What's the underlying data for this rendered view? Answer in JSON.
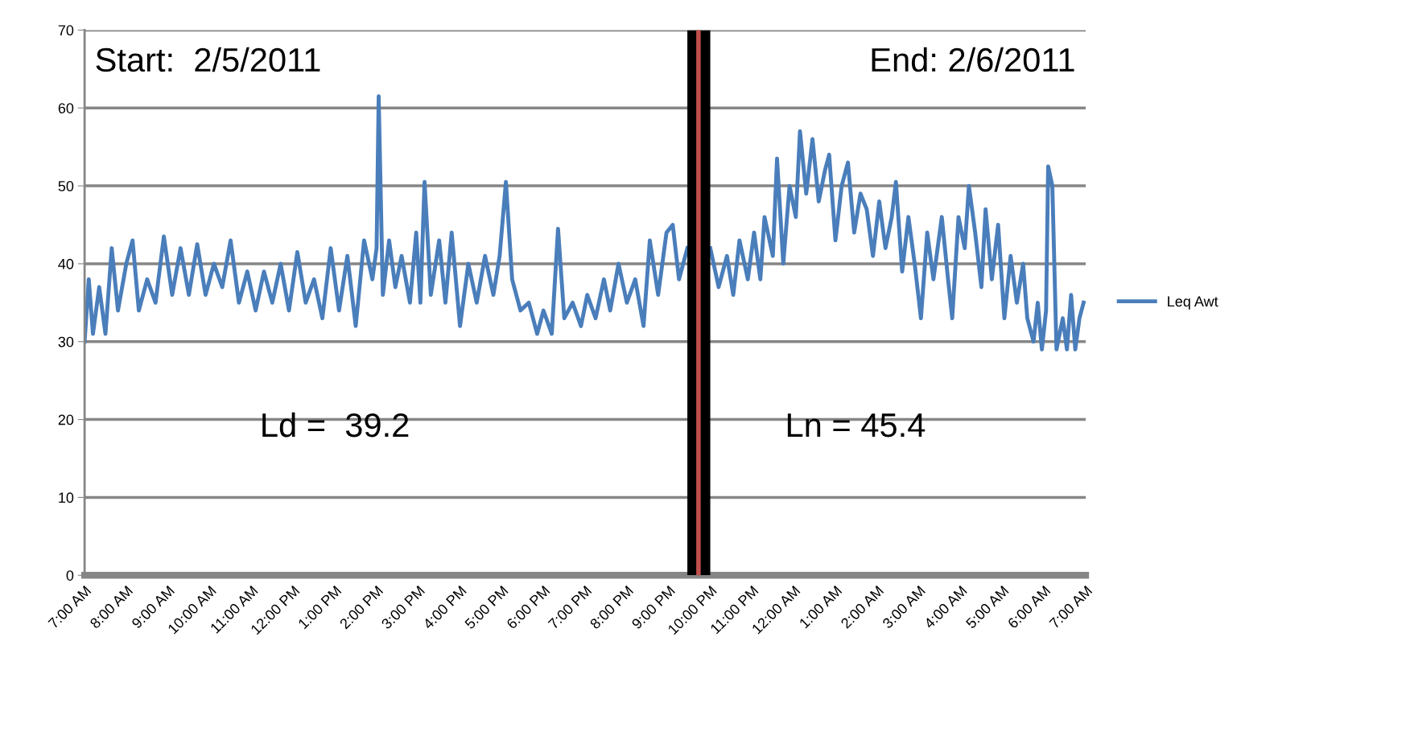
{
  "chart_data": {
    "type": "line",
    "xlim": [
      "2011-02-05T07:00",
      "2011-02-06T07:00"
    ],
    "ylim": [
      0,
      70
    ],
    "yticks": [
      0,
      10,
      20,
      30,
      40,
      50,
      60,
      70
    ],
    "xticks": [
      {
        "value": "2011-02-05T07:00",
        "label": "7:00 AM"
      },
      {
        "value": "2011-02-05T08:00",
        "label": "8:00 AM"
      },
      {
        "value": "2011-02-05T09:00",
        "label": "9:00 AM"
      },
      {
        "value": "2011-02-05T10:00",
        "label": "10:00 AM"
      },
      {
        "value": "2011-02-05T11:00",
        "label": "11:00 AM"
      },
      {
        "value": "2011-02-05T12:00",
        "label": "12:00 PM"
      },
      {
        "value": "2011-02-05T13:00",
        "label": "1:00 PM"
      },
      {
        "value": "2011-02-05T14:00",
        "label": "2:00 PM"
      },
      {
        "value": "2011-02-05T15:00",
        "label": "3:00 PM"
      },
      {
        "value": "2011-02-05T16:00",
        "label": "4:00 PM"
      },
      {
        "value": "2011-02-05T17:00",
        "label": "5:00 PM"
      },
      {
        "value": "2011-02-05T18:00",
        "label": "6:00 PM"
      },
      {
        "value": "2011-02-05T19:00",
        "label": "7:00 PM"
      },
      {
        "value": "2011-02-05T20:00",
        "label": "8:00 PM"
      },
      {
        "value": "2011-02-05T21:00",
        "label": "9:00 PM"
      },
      {
        "value": "2011-02-05T22:00",
        "label": "10:00 PM"
      },
      {
        "value": "2011-02-05T23:00",
        "label": "11:00 PM"
      },
      {
        "value": "2011-02-06T00:00",
        "label": "12:00 AM"
      },
      {
        "value": "2011-02-06T01:00",
        "label": "1:00 AM"
      },
      {
        "value": "2011-02-06T02:00",
        "label": "2:00 AM"
      },
      {
        "value": "2011-02-06T03:00",
        "label": "3:00 AM"
      },
      {
        "value": "2011-02-06T04:00",
        "label": "4:00 AM"
      },
      {
        "value": "2011-02-06T05:00",
        "label": "5:00 AM"
      },
      {
        "value": "2011-02-06T06:00",
        "label": "6:00 AM"
      },
      {
        "value": "2011-02-06T07:00",
        "label": "7:00 AM"
      }
    ],
    "grid": "y",
    "legend": "right",
    "marker": "none",
    "line_style": "solid",
    "annotations": [
      "Start:  2/5/2011",
      "End: 2/6/2011",
      "Ld =  39.2",
      "Ln = 45.4"
    ],
    "bands": [
      {
        "axis": "x",
        "from": "2011-02-05T21:27",
        "to": "2011-02-05T22:00",
        "color": "#000000"
      }
    ],
    "ref_lines": [
      {
        "axis": "x",
        "value": "2011-02-05T21:43",
        "color": "#c0504d"
      }
    ],
    "series": [
      {
        "name": "Leq Awt",
        "color": "#4a7ebb",
        "x": [
          "2011-02-05T07:00",
          "2011-02-05T07:06",
          "2011-02-05T07:12",
          "2011-02-05T07:21",
          "2011-02-05T07:30",
          "2011-02-05T07:39",
          "2011-02-05T07:48",
          "2011-02-05T08:00",
          "2011-02-05T08:09",
          "2011-02-05T08:18",
          "2011-02-05T08:30",
          "2011-02-05T08:42",
          "2011-02-05T08:54",
          "2011-02-05T09:06",
          "2011-02-05T09:18",
          "2011-02-05T09:30",
          "2011-02-05T09:42",
          "2011-02-05T09:54",
          "2011-02-05T10:06",
          "2011-02-05T10:18",
          "2011-02-05T10:30",
          "2011-02-05T10:42",
          "2011-02-05T10:54",
          "2011-02-05T11:06",
          "2011-02-05T11:18",
          "2011-02-05T11:30",
          "2011-02-05T11:42",
          "2011-02-05T11:54",
          "2011-02-05T12:06",
          "2011-02-05T12:18",
          "2011-02-05T12:30",
          "2011-02-05T12:42",
          "2011-02-05T12:54",
          "2011-02-05T13:06",
          "2011-02-05T13:18",
          "2011-02-05T13:30",
          "2011-02-05T13:42",
          "2011-02-05T13:54",
          "2011-02-05T14:00",
          "2011-02-05T14:03",
          "2011-02-05T14:09",
          "2011-02-05T14:18",
          "2011-02-05T14:27",
          "2011-02-05T14:36",
          "2011-02-05T14:48",
          "2011-02-05T14:57",
          "2011-02-05T15:03",
          "2011-02-05T15:09",
          "2011-02-05T15:18",
          "2011-02-05T15:30",
          "2011-02-05T15:39",
          "2011-02-05T15:48",
          "2011-02-05T16:00",
          "2011-02-05T16:12",
          "2011-02-05T16:24",
          "2011-02-05T16:36",
          "2011-02-05T16:48",
          "2011-02-05T16:57",
          "2011-02-05T17:06",
          "2011-02-05T17:15",
          "2011-02-05T17:27",
          "2011-02-05T17:39",
          "2011-02-05T17:51",
          "2011-02-05T18:00",
          "2011-02-05T18:12",
          "2011-02-05T18:21",
          "2011-02-05T18:30",
          "2011-02-05T18:42",
          "2011-02-05T18:54",
          "2011-02-05T19:03",
          "2011-02-05T19:15",
          "2011-02-05T19:27",
          "2011-02-05T19:36",
          "2011-02-05T19:48",
          "2011-02-05T20:00",
          "2011-02-05T20:12",
          "2011-02-05T20:24",
          "2011-02-05T20:33",
          "2011-02-05T20:45",
          "2011-02-05T20:57",
          "2011-02-05T21:06",
          "2011-02-05T21:15",
          "2011-02-05T21:27",
          "2011-02-05T21:36",
          "2011-02-05T21:45",
          "2011-02-05T21:51",
          "2011-02-05T22:00",
          "2011-02-05T22:12",
          "2011-02-05T22:24",
          "2011-02-05T22:33",
          "2011-02-05T22:42",
          "2011-02-05T22:54",
          "2011-02-05T23:03",
          "2011-02-05T23:12",
          "2011-02-05T23:18",
          "2011-02-05T23:30",
          "2011-02-05T23:36",
          "2011-02-05T23:45",
          "2011-02-05T23:54",
          "2011-02-06T00:03",
          "2011-02-06T00:09",
          "2011-02-06T00:18",
          "2011-02-06T00:27",
          "2011-02-06T00:36",
          "2011-02-06T00:45",
          "2011-02-06T00:51",
          "2011-02-06T01:00",
          "2011-02-06T01:09",
          "2011-02-06T01:18",
          "2011-02-06T01:27",
          "2011-02-06T01:36",
          "2011-02-06T01:45",
          "2011-02-06T01:54",
          "2011-02-06T02:03",
          "2011-02-06T02:12",
          "2011-02-06T02:21",
          "2011-02-06T02:27",
          "2011-02-06T02:36",
          "2011-02-06T02:45",
          "2011-02-06T02:54",
          "2011-02-06T03:03",
          "2011-02-06T03:12",
          "2011-02-06T03:21",
          "2011-02-06T03:33",
          "2011-02-06T03:42",
          "2011-02-06T03:48",
          "2011-02-06T03:57",
          "2011-02-06T04:06",
          "2011-02-06T04:12",
          "2011-02-06T04:21",
          "2011-02-06T04:30",
          "2011-02-06T04:36",
          "2011-02-06T04:45",
          "2011-02-06T04:54",
          "2011-02-06T05:03",
          "2011-02-06T05:12",
          "2011-02-06T05:21",
          "2011-02-06T05:30",
          "2011-02-06T05:36",
          "2011-02-06T05:45",
          "2011-02-06T05:51",
          "2011-02-06T05:57",
          "2011-02-06T06:03",
          "2011-02-06T06:06",
          "2011-02-06T06:12",
          "2011-02-06T06:18",
          "2011-02-06T06:27",
          "2011-02-06T06:33",
          "2011-02-06T06:39",
          "2011-02-06T06:45",
          "2011-02-06T06:51",
          "2011-02-06T06:57"
        ],
        "values": [
          30,
          38,
          31,
          37,
          31,
          42,
          34,
          40,
          43,
          34,
          38,
          35,
          43.5,
          36,
          42,
          36,
          42.5,
          36,
          40,
          37,
          43,
          35,
          39,
          34,
          39,
          35,
          40,
          34,
          41.5,
          35,
          38,
          33,
          42,
          34,
          41,
          32,
          43,
          38,
          42,
          61.5,
          36,
          43,
          37,
          41,
          35,
          44,
          35,
          50.5,
          36,
          43,
          35,
          44,
          32,
          40,
          35,
          41,
          36,
          41,
          50.5,
          38,
          34,
          35,
          31,
          34,
          31,
          44.5,
          33,
          35,
          32,
          36,
          33,
          38,
          34,
          40,
          35,
          38,
          32,
          43,
          36,
          44,
          45,
          38,
          42,
          null,
          null,
          null,
          42,
          37,
          41,
          36,
          43,
          38,
          44,
          38,
          46,
          41,
          53.5,
          40,
          50,
          46,
          57,
          49,
          56,
          48,
          52,
          54,
          43,
          50,
          53,
          44,
          49,
          47,
          41,
          48,
          42,
          46,
          50.5,
          39,
          46,
          40,
          33,
          44,
          38,
          46,
          38,
          33,
          46,
          42,
          50,
          44,
          37,
          47,
          38,
          45,
          33,
          41,
          35,
          40,
          33,
          30,
          35,
          29,
          34,
          52.5,
          50,
          29,
          33,
          29,
          36,
          29,
          33,
          35
        ]
      }
    ]
  }
}
